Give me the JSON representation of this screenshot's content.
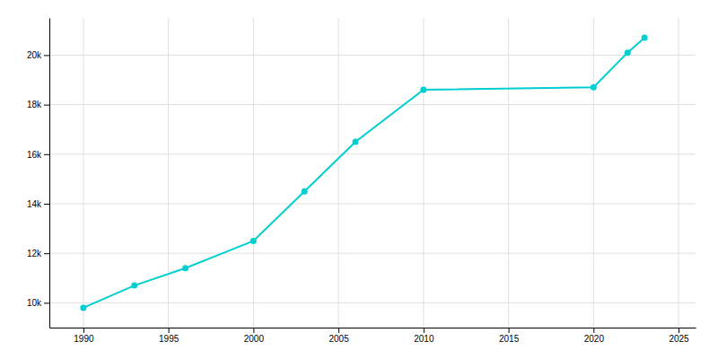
{
  "chart_data": {
    "type": "line",
    "x": [
      1990,
      1993,
      1996,
      2000,
      2003,
      2006,
      2010,
      2020,
      2022,
      2023
    ],
    "values": [
      9800,
      10700,
      11400,
      12500,
      14500,
      16500,
      18600,
      18700,
      20100,
      20700
    ],
    "color": "#00CED1",
    "marker": "circle",
    "xlim": [
      1988,
      2026
    ],
    "xticks": [
      1990,
      1995,
      2000,
      2005,
      2010,
      2015,
      2020,
      2025
    ],
    "ylim": [
      9000,
      21500
    ],
    "yticks": [
      {
        "value": 10000,
        "label": "10k"
      },
      {
        "value": 12000,
        "label": "12k"
      },
      {
        "value": 14000,
        "label": "14k"
      },
      {
        "value": 16000,
        "label": "16k"
      },
      {
        "value": 18000,
        "label": "18k"
      },
      {
        "value": 20000,
        "label": "20k"
      }
    ],
    "grid": true
  }
}
